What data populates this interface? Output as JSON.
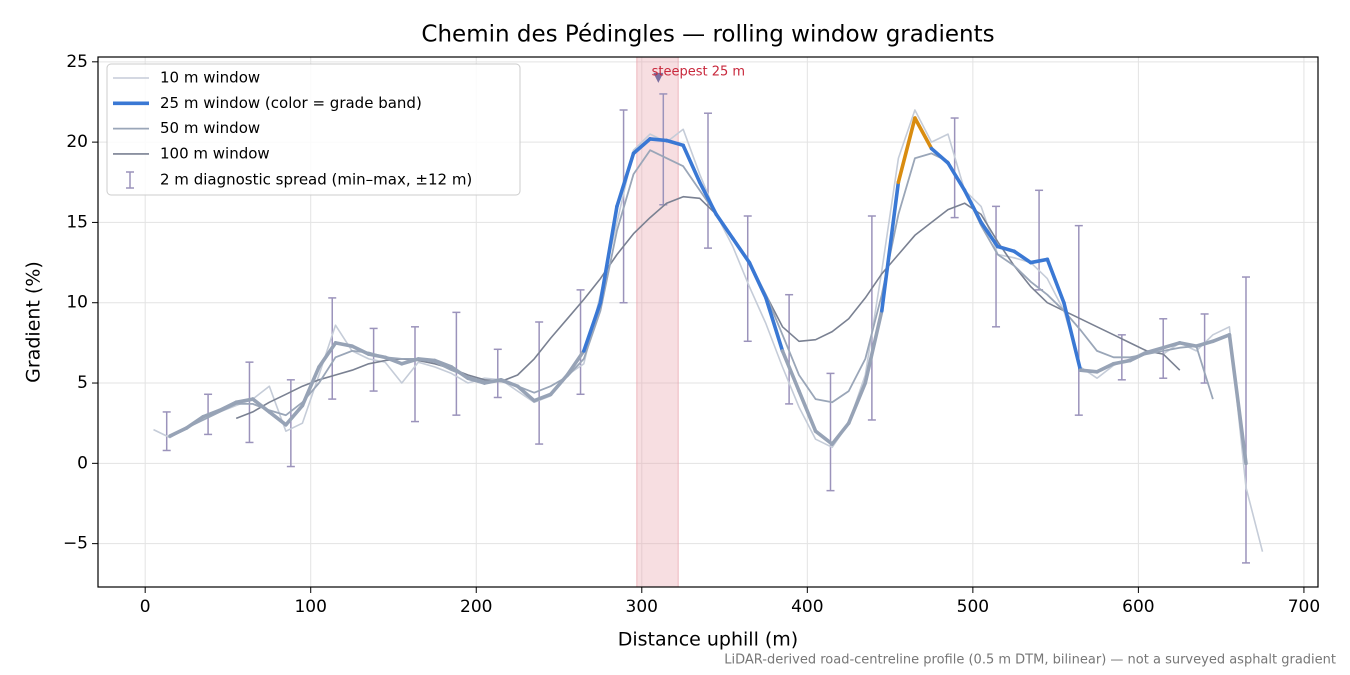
{
  "chart_data": {
    "type": "line",
    "title": "Chemin des Pédingles — rolling window gradients",
    "xlabel": "Distance uphill (m)",
    "ylabel": "Gradient (%)",
    "footnote": "LiDAR-derived road-centreline profile (0.5 m DTM, bilinear) — not a surveyed asphalt gradient",
    "xlim": [
      -28.5,
      708.5
    ],
    "ylim": [
      -7.7,
      25.3
    ],
    "xticks": [
      0,
      100,
      200,
      300,
      400,
      500,
      600,
      700
    ],
    "yticks": [
      {
        "value": -5,
        "label": "−5"
      },
      0,
      5,
      10,
      15,
      20,
      25
    ],
    "grid": true,
    "legend": "upper left",
    "highlight_span": [
      297,
      322
    ],
    "highlight_color": "#e8a0aa",
    "annotation": {
      "text": "steepest 25 m",
      "x": 310,
      "y": 24,
      "color": "#c8283c",
      "marker_color": "#7b6fa0"
    },
    "x": [
      5,
      15,
      25,
      35,
      45,
      55,
      65,
      75,
      85,
      95,
      105,
      115,
      125,
      135,
      145,
      155,
      165,
      175,
      185,
      195,
      205,
      215,
      225,
      235,
      245,
      255,
      265,
      275,
      285,
      295,
      305,
      315,
      325,
      335,
      345,
      355,
      365,
      375,
      385,
      395,
      405,
      415,
      425,
      435,
      445,
      455,
      465,
      475,
      485,
      495,
      505,
      515,
      525,
      535,
      545,
      555,
      565,
      575,
      585,
      595,
      605,
      615,
      625,
      635,
      645,
      655,
      665,
      675
    ],
    "series": [
      {
        "name": "10 m window",
        "color": "#c5ccd8",
        "width": 1.6,
        "values": [
          2.1,
          1.6,
          2.2,
          2.8,
          3.2,
          3.6,
          4.0,
          4.8,
          2.0,
          2.5,
          5.5,
          8.6,
          7.0,
          6.5,
          6.3,
          5.0,
          6.3,
          6.0,
          5.6,
          5.0,
          5.3,
          5.2,
          4.5,
          3.8,
          4.2,
          5.5,
          6.2,
          10.5,
          15.0,
          19.5,
          20.5,
          20.0,
          20.8,
          18.0,
          15.5,
          13.5,
          11.0,
          8.7,
          6.0,
          3.5,
          1.5,
          1.0,
          2.5,
          5.5,
          12.0,
          19.0,
          22.0,
          20.0,
          20.5,
          17.0,
          16.0,
          13.0,
          12.8,
          12.5,
          11.5,
          9.5,
          6.0,
          5.3,
          6.1,
          6.5,
          7.0,
          6.8,
          7.5,
          7.0,
          8.0,
          8.5,
          -1.5,
          -5.5
        ]
      },
      {
        "name": "25 m window (color = grade band)",
        "color": "#3a78d4",
        "width": 3.6,
        "grade_band_thresholds": [
          10,
          21
        ],
        "grade_band_colors": [
          "#97a3b6",
          "#3a78d4",
          "#d98c10"
        ],
        "values": [
          null,
          1.7,
          2.2,
          2.9,
          3.3,
          3.8,
          4.0,
          3.2,
          2.4,
          3.6,
          6.0,
          7.5,
          7.3,
          6.8,
          6.6,
          6.2,
          6.5,
          6.4,
          6.0,
          5.3,
          5.0,
          5.2,
          4.8,
          3.9,
          4.3,
          5.5,
          7.0,
          10.0,
          16.0,
          19.3,
          20.2,
          20.1,
          19.8,
          17.5,
          15.5,
          14.0,
          12.5,
          10.3,
          7.0,
          4.5,
          2.0,
          1.2,
          2.5,
          5.0,
          9.5,
          17.5,
          21.5,
          19.6,
          18.7,
          17.0,
          15.0,
          13.5,
          13.2,
          12.5,
          12.7,
          10.0,
          5.8,
          5.7,
          6.2,
          6.4,
          6.9,
          7.2,
          7.5,
          7.3,
          7.6,
          8.0,
          0,
          null
        ]
      },
      {
        "name": "50 m window",
        "color": "#9aa6b8",
        "width": 1.8,
        "values": [
          null,
          null,
          2.2,
          2.7,
          3.2,
          3.7,
          3.7,
          3.3,
          3.0,
          3.8,
          5.0,
          6.6,
          7.0,
          6.9,
          6.6,
          6.5,
          6.5,
          6.3,
          5.8,
          5.4,
          5.1,
          5.1,
          4.8,
          4.4,
          4.8,
          5.4,
          6.5,
          9.5,
          14.5,
          18.0,
          19.5,
          19.0,
          18.5,
          17.0,
          15.5,
          14.0,
          12.5,
          10.5,
          8.0,
          5.5,
          4.0,
          3.8,
          4.5,
          6.5,
          10.5,
          15.5,
          19.0,
          19.3,
          18.8,
          17.0,
          14.8,
          13.0,
          12.3,
          11.3,
          10.5,
          9.5,
          8.3,
          7.0,
          6.6,
          6.6,
          6.8,
          7.0,
          7.2,
          7.3,
          4.0,
          null,
          null,
          null
        ]
      },
      {
        "name": "100 m window",
        "color": "#7a8192",
        "width": 1.6,
        "values": [
          null,
          null,
          null,
          null,
          null,
          2.8,
          3.2,
          3.8,
          4.3,
          4.8,
          5.2,
          5.5,
          5.8,
          6.2,
          6.4,
          6.5,
          6.4,
          6.2,
          5.9,
          5.5,
          5.2,
          5.1,
          5.5,
          6.5,
          7.8,
          9.0,
          10.2,
          11.5,
          13.0,
          14.3,
          15.3,
          16.2,
          16.6,
          16.5,
          15.5,
          14.0,
          12.5,
          10.5,
          8.5,
          7.6,
          7.7,
          8.2,
          9.0,
          10.3,
          11.8,
          13.0,
          14.2,
          15.0,
          15.8,
          16.2,
          15.5,
          13.8,
          12.3,
          11.0,
          10.0,
          9.5,
          9.0,
          8.5,
          8.0,
          7.5,
          7.0,
          6.8,
          5.8,
          null,
          null,
          null,
          null,
          null
        ]
      }
    ],
    "errorbars": {
      "name": "2 m diagnostic spread (min–max, ±12 m)",
      "color": "#9b93bb",
      "x": [
        13,
        38,
        63,
        88,
        113,
        138,
        163,
        188,
        213,
        238,
        263,
        289,
        313,
        340,
        364,
        389,
        414,
        439,
        489,
        514,
        540,
        564,
        590,
        615,
        640,
        665
      ],
      "low": [
        0.8,
        1.8,
        1.3,
        -0.2,
        4.0,
        4.5,
        2.6,
        3.0,
        4.1,
        1.2,
        4.3,
        10.0,
        16.1,
        13.4,
        7.6,
        3.7,
        -1.7,
        2.7,
        15.3,
        8.5,
        10.8,
        3.0,
        5.2,
        5.3,
        5.0,
        -6.2
      ],
      "high": [
        3.2,
        4.3,
        6.3,
        5.2,
        10.3,
        8.4,
        8.5,
        9.4,
        7.1,
        8.8,
        10.8,
        22.0,
        23.0,
        21.8,
        15.4,
        10.5,
        5.6,
        15.4,
        21.5,
        16.0,
        17.0,
        14.8,
        8.0,
        9.0,
        9.3,
        11.6
      ]
    }
  }
}
